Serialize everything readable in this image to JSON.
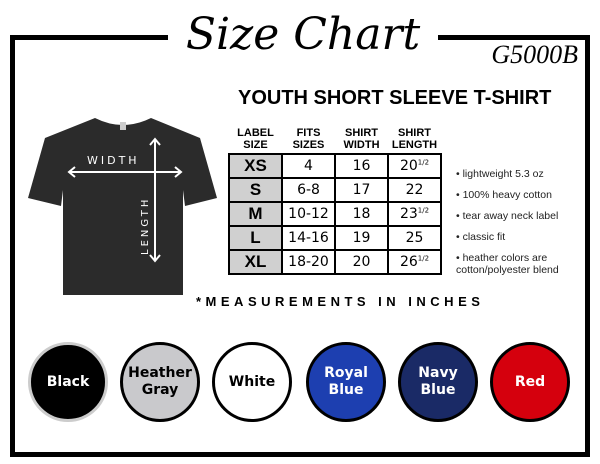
{
  "title": "Size Chart",
  "model": "G5000B",
  "subtitle": "YOUTH SHORT SLEEVE T-SHIRT",
  "diagram": {
    "width_label": "WIDTH",
    "length_label": "LENGTH"
  },
  "table": {
    "headers": [
      [
        "LABEL",
        "SIZE"
      ],
      [
        "FITS",
        "SIZES"
      ],
      [
        "SHIRT",
        "WIDTH"
      ],
      [
        "SHIRT",
        "LENGTH"
      ]
    ],
    "rows": [
      {
        "size": "XS",
        "fits": "4",
        "width": "16",
        "length": "20",
        "frac": "1/2"
      },
      {
        "size": "S",
        "fits": "6-8",
        "width": "17",
        "length": "22",
        "frac": ""
      },
      {
        "size": "M",
        "fits": "10-12",
        "width": "18",
        "length": "23",
        "frac": "1/2"
      },
      {
        "size": "L",
        "fits": "14-16",
        "width": "19",
        "length": "25",
        "frac": ""
      },
      {
        "size": "XL",
        "fits": "18-20",
        "width": "20",
        "length": "26",
        "frac": "1/2"
      }
    ]
  },
  "features": [
    "lightweight 5.3 oz",
    "100% heavy cotton",
    "tear away neck label",
    "classic fit",
    "heather colors are cotton/polyester blend"
  ],
  "note": "*MEASUREMENTS IN INCHES",
  "colors": [
    {
      "name": "Black",
      "line2": "",
      "fill": "#000000",
      "text": "#ffffff"
    },
    {
      "name": "Heather",
      "line2": "Gray",
      "fill": "#c9c9cc",
      "text": "#000000"
    },
    {
      "name": "White",
      "line2": "",
      "fill": "#ffffff",
      "text": "#000000"
    },
    {
      "name": "Royal",
      "line2": "Blue",
      "fill": "#1d3fb0",
      "text": "#ffffff"
    },
    {
      "name": "Navy",
      "line2": "Blue",
      "fill": "#1a2a66",
      "text": "#ffffff"
    },
    {
      "name": "Red",
      "line2": "",
      "fill": "#d5000d",
      "text": "#ffffff"
    }
  ]
}
